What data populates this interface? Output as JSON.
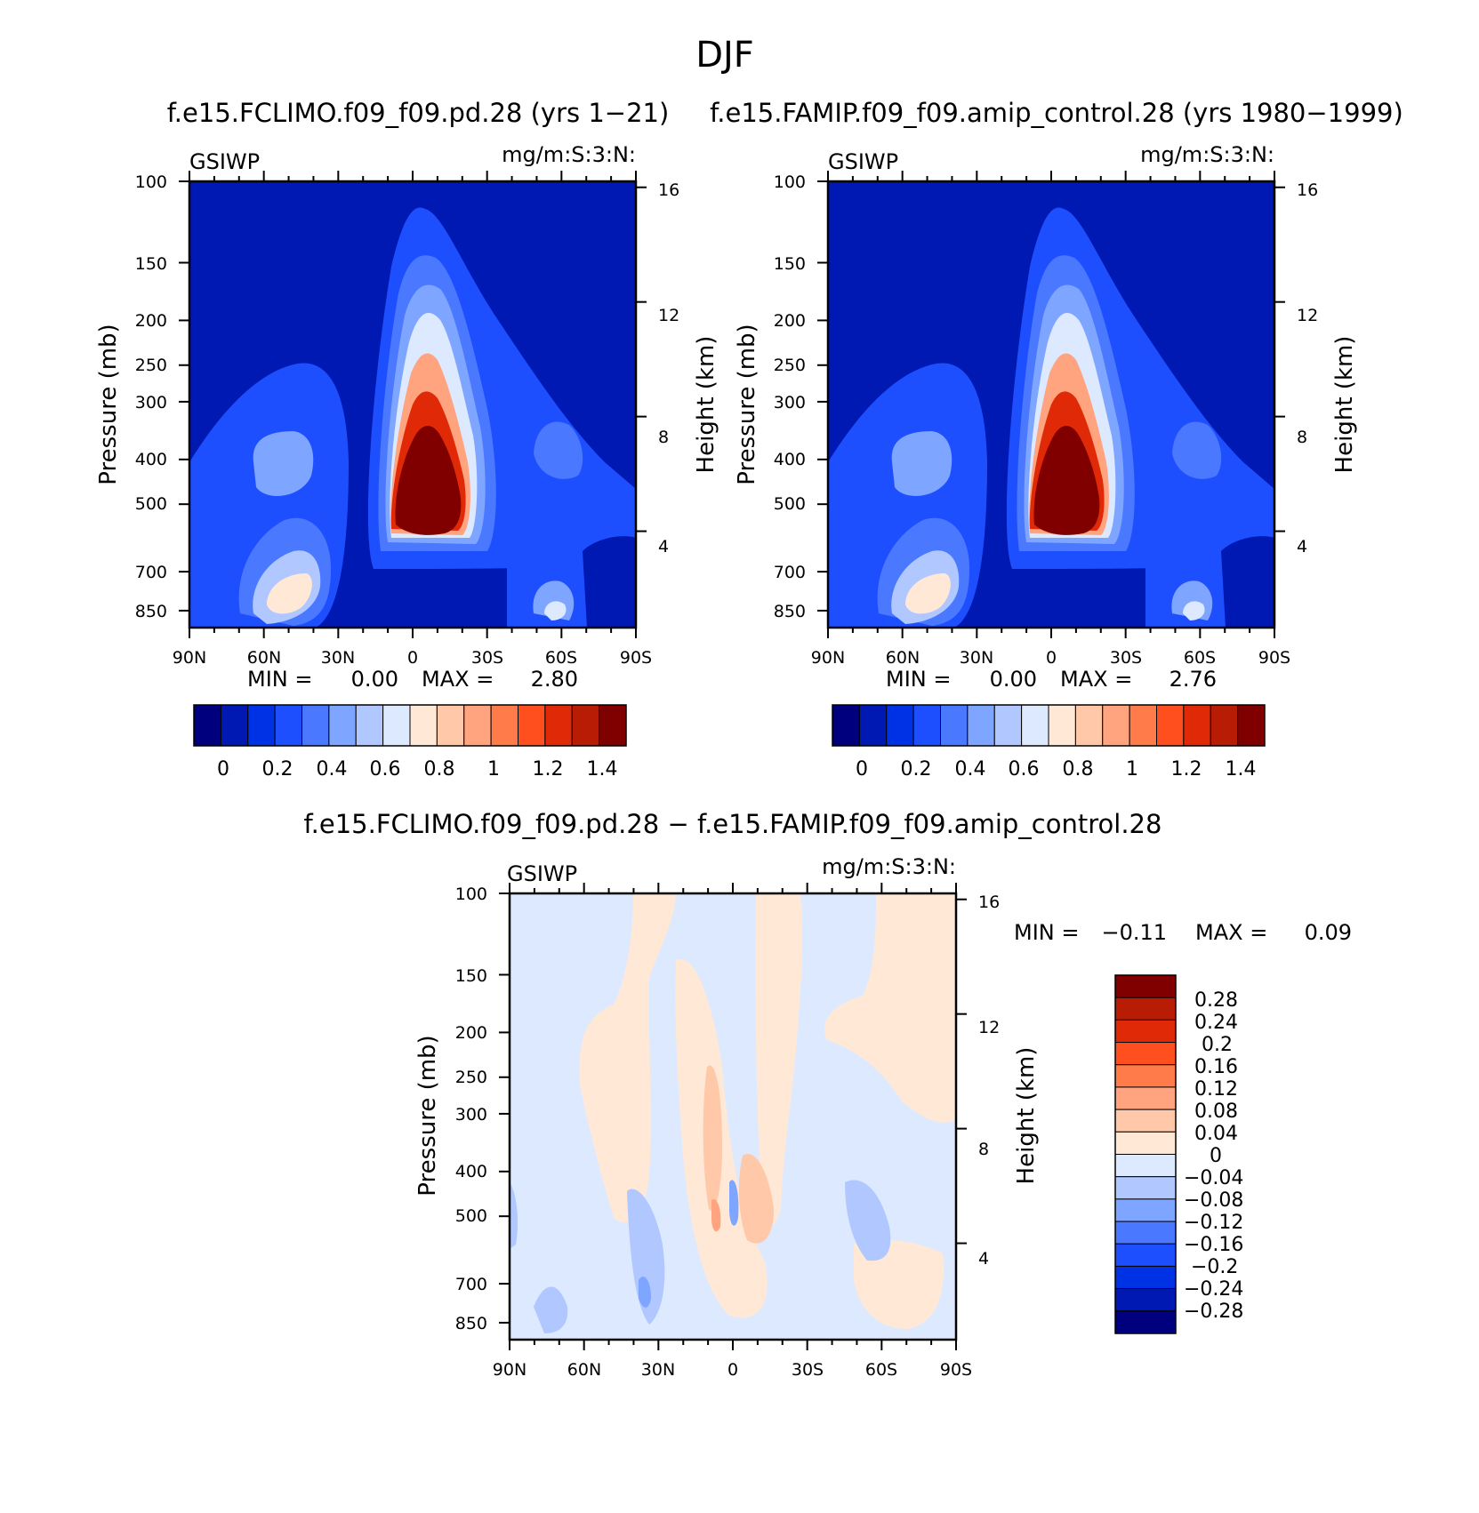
{
  "page": {
    "title": "DJF"
  },
  "chart_data": [
    {
      "type": "heatmap",
      "title": "f.e15.FCLIMO.f09_f09.pd.28 (yrs 1−21)",
      "variable": "GSIWP",
      "units": "mg/m:S:3:N:",
      "ylabel": "Pressure (mb)",
      "ylabel_right": "Height (km)",
      "xticks": [
        "90N",
        "60N",
        "30N",
        "0",
        "30S",
        "60S",
        "90S"
      ],
      "xlim": [
        90,
        -90
      ],
      "yticks": [
        100,
        150,
        200,
        250,
        300,
        400,
        500,
        700,
        850
      ],
      "ylim": [
        100,
        925
      ],
      "yticks_right": [
        16,
        12,
        8,
        4
      ],
      "min_label": "MIN =",
      "min_value": "0.00",
      "max_label": "MAX =",
      "max_value": "2.80",
      "colorbar": {
        "orientation": "horizontal",
        "labels": [
          "0",
          "0.2",
          "0.4",
          "0.6",
          "0.8",
          "1",
          "1.2",
          "1.4"
        ],
        "levels": [
          0,
          0.1,
          0.2,
          0.3,
          0.4,
          0.5,
          0.6,
          0.7,
          0.8,
          0.9,
          1.0,
          1.1,
          1.2,
          1.3,
          1.4
        ],
        "colors": [
          "#00007f",
          "#0019b2",
          "#0032e5",
          "#1e4fff",
          "#4a78ff",
          "#7ea5ff",
          "#b0c8ff",
          "#dde9ff",
          "#ffe9d6",
          "#ffc8a8",
          "#ffa47e",
          "#ff7c4a",
          "#ff4f1f",
          "#e02a07",
          "#b81c05",
          "#800000"
        ]
      }
    },
    {
      "type": "heatmap",
      "title": "f.e15.FAMIP.f09_f09.amip_control.28 (yrs 1980−1999)",
      "variable": "GSIWP",
      "units": "mg/m:S:3:N:",
      "ylabel": "Pressure (mb)",
      "ylabel_right": "Height (km)",
      "xticks": [
        "90N",
        "60N",
        "30N",
        "0",
        "30S",
        "60S",
        "90S"
      ],
      "xlim": [
        90,
        -90
      ],
      "yticks": [
        100,
        150,
        200,
        250,
        300,
        400,
        500,
        700,
        850
      ],
      "ylim": [
        100,
        925
      ],
      "yticks_right": [
        16,
        12,
        8,
        4
      ],
      "min_label": "MIN =",
      "min_value": "0.00",
      "max_label": "MAX =",
      "max_value": "2.76",
      "colorbar": {
        "orientation": "horizontal",
        "labels": [
          "0",
          "0.2",
          "0.4",
          "0.6",
          "0.8",
          "1",
          "1.2",
          "1.4"
        ],
        "levels": [
          0,
          0.1,
          0.2,
          0.3,
          0.4,
          0.5,
          0.6,
          0.7,
          0.8,
          0.9,
          1.0,
          1.1,
          1.2,
          1.3,
          1.4
        ],
        "colors": [
          "#00007f",
          "#0019b2",
          "#0032e5",
          "#1e4fff",
          "#4a78ff",
          "#7ea5ff",
          "#b0c8ff",
          "#dde9ff",
          "#ffe9d6",
          "#ffc8a8",
          "#ffa47e",
          "#ff7c4a",
          "#ff4f1f",
          "#e02a07",
          "#b81c05",
          "#800000"
        ]
      }
    },
    {
      "type": "heatmap",
      "title": "f.e15.FCLIMO.f09_f09.pd.28 − f.e15.FAMIP.f09_f09.amip_control.28",
      "variable": "GSIWP",
      "units": "mg/m:S:3:N:",
      "ylabel": "Pressure (mb)",
      "ylabel_right": "Height (km)",
      "xticks": [
        "90N",
        "60N",
        "30N",
        "0",
        "30S",
        "60S",
        "90S"
      ],
      "xlim": [
        90,
        -90
      ],
      "yticks": [
        100,
        150,
        200,
        250,
        300,
        400,
        500,
        700,
        850
      ],
      "ylim": [
        100,
        925
      ],
      "yticks_right": [
        16,
        12,
        8,
        4
      ],
      "min_label": "MIN =",
      "min_value": "−0.11",
      "max_label": "MAX =",
      "max_value": "0.09",
      "colorbar": {
        "orientation": "vertical",
        "labels": [
          "0.28",
          "0.24",
          "0.2",
          "0.16",
          "0.12",
          "0.08",
          "0.04",
          "0",
          "−0.04",
          "−0.08",
          "−0.12",
          "−0.16",
          "−0.2",
          "−0.24",
          "−0.28"
        ],
        "colors": [
          "#800000",
          "#b81c05",
          "#e02a07",
          "#ff4f1f",
          "#ff7c4a",
          "#ffa47e",
          "#ffc8a8",
          "#ffe9d6",
          "#dde9ff",
          "#b0c8ff",
          "#7ea5ff",
          "#4a78ff",
          "#1e4fff",
          "#0032e5",
          "#0019b2",
          "#00007f"
        ]
      }
    }
  ]
}
